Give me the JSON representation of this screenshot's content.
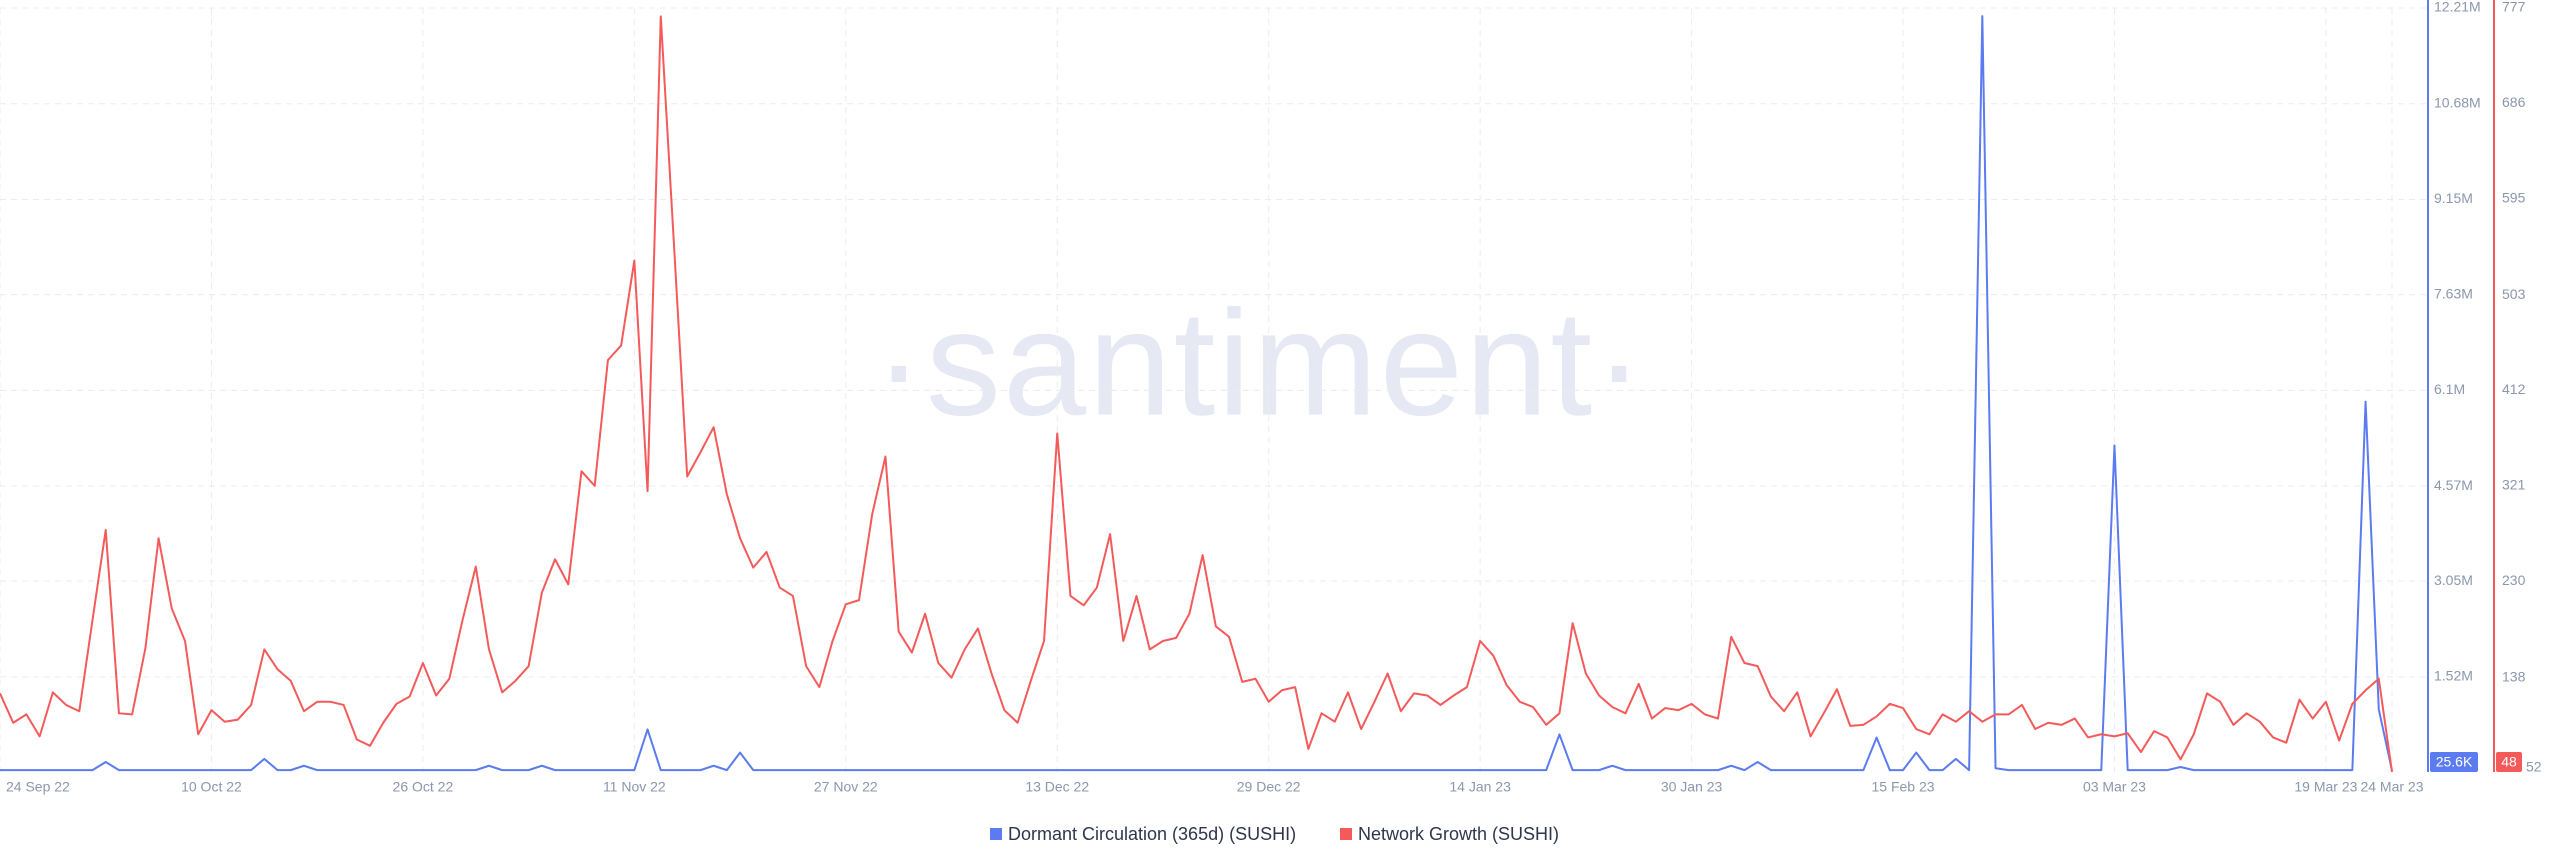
{
  "chart_data": {
    "type": "line",
    "watermark": "·santiment·",
    "categories": [
      "24 Sep 22",
      null,
      null,
      null,
      null,
      null,
      null,
      null,
      null,
      null,
      null,
      null,
      null,
      null,
      null,
      null,
      "10 Oct 22",
      null,
      null,
      null,
      null,
      null,
      null,
      null,
      null,
      null,
      null,
      null,
      null,
      null,
      null,
      null,
      "26 Oct 22",
      null,
      null,
      null,
      null,
      null,
      null,
      null,
      null,
      null,
      null,
      null,
      null,
      null,
      null,
      null,
      "11 Nov 22",
      null,
      null,
      null,
      null,
      null,
      null,
      null,
      null,
      null,
      null,
      null,
      null,
      null,
      null,
      null,
      "27 Nov 22",
      null,
      null,
      null,
      null,
      null,
      null,
      null,
      null,
      null,
      null,
      null,
      null,
      null,
      null,
      null,
      "13 Dec 22",
      null,
      null,
      null,
      null,
      null,
      null,
      null,
      null,
      null,
      null,
      null,
      null,
      null,
      null,
      null,
      "29 Dec 22",
      null,
      null,
      null,
      null,
      null,
      null,
      null,
      null,
      null,
      null,
      null,
      null,
      null,
      null,
      null,
      "14 Jan 23",
      null,
      null,
      null,
      null,
      null,
      null,
      null,
      null,
      null,
      null,
      null,
      null,
      null,
      null,
      null,
      "30 Jan 23",
      null,
      null,
      null,
      null,
      null,
      null,
      null,
      null,
      null,
      null,
      null,
      null,
      null,
      null,
      null,
      "15 Feb 23",
      null,
      null,
      null,
      null,
      null,
      null,
      null,
      null,
      null,
      null,
      null,
      null,
      null,
      null,
      null,
      "03 Mar 23",
      null,
      null,
      null,
      null,
      null,
      null,
      null,
      null,
      null,
      null,
      null,
      null,
      null,
      null,
      null,
      "19 Mar 23",
      null,
      null,
      null,
      null,
      "24 Mar 23"
    ],
    "series": [
      {
        "name": "Dormant Circulation (365d) (SUSHI)",
        "color": "#5b7bf0",
        "axis": "y",
        "current_label": "25.6K",
        "values": [
          30000,
          30000,
          30000,
          30000,
          30000,
          30000,
          30000,
          30000,
          160000,
          30000,
          30000,
          30000,
          30000,
          30000,
          30000,
          30000,
          30000,
          30000,
          30000,
          30000,
          210000,
          30000,
          30000,
          100000,
          30000,
          30000,
          30000,
          30000,
          30000,
          30000,
          30000,
          30000,
          30000,
          30000,
          30000,
          30000,
          30000,
          100000,
          30000,
          30000,
          30000,
          100000,
          30000,
          30000,
          30000,
          30000,
          30000,
          30000,
          30000,
          680000,
          30000,
          30000,
          30000,
          30000,
          100000,
          30000,
          310000,
          30000,
          30000,
          30000,
          30000,
          30000,
          30000,
          30000,
          30000,
          30000,
          30000,
          30000,
          30000,
          30000,
          30000,
          30000,
          30000,
          30000,
          30000,
          30000,
          30000,
          30000,
          30000,
          30000,
          30000,
          30000,
          30000,
          30000,
          30000,
          30000,
          30000,
          30000,
          30000,
          30000,
          30000,
          30000,
          30000,
          30000,
          30000,
          30000,
          30000,
          30000,
          30000,
          30000,
          30000,
          30000,
          30000,
          30000,
          30000,
          30000,
          30000,
          30000,
          30000,
          30000,
          30000,
          30000,
          30000,
          30000,
          30000,
          30000,
          30000,
          30000,
          600000,
          30000,
          30000,
          30000,
          100000,
          30000,
          30000,
          30000,
          30000,
          30000,
          30000,
          30000,
          30000,
          100000,
          30000,
          160000,
          30000,
          30000,
          30000,
          30000,
          30000,
          30000,
          30000,
          30000,
          550000,
          30000,
          30000,
          310000,
          30000,
          30000,
          210000,
          30000,
          12080000,
          60000,
          30000,
          30000,
          30000,
          30000,
          30000,
          30000,
          30000,
          30000,
          5220000,
          30000,
          30000,
          30000,
          30000,
          80000,
          30000,
          30000,
          30000,
          30000,
          30000,
          30000,
          30000,
          30000,
          30000,
          30000,
          30000,
          30000,
          30000,
          5920000,
          1000000,
          25600
        ]
      },
      {
        "name": "Network Growth (SUSHI)",
        "color": "#f55a5a",
        "axis": "y2",
        "current_label": "48",
        "values": [
          123,
          95,
          103,
          82,
          124,
          112,
          106,
          193,
          279,
          104,
          103,
          166,
          271,
          204,
          173,
          84,
          107,
          96,
          98,
          112,
          165,
          146,
          135,
          106,
          115,
          115,
          112,
          79,
          73,
          95,
          113,
          120,
          152,
          121,
          137,
          193,
          244,
          165,
          124,
          135,
          149,
          219,
          251,
          227,
          335,
          321,
          441,
          455,
          536,
          316,
          769,
          551,
          330,
          353,
          377,
          313,
          271,
          243,
          258,
          224,
          216,
          149,
          129,
          173,
          208,
          212,
          294,
          349,
          182,
          162,
          199,
          152,
          138,
          165,
          185,
          143,
          107,
          95,
          135,
          173,
          371,
          216,
          207,
          224,
          275,
          173,
          216,
          165,
          173,
          176,
          199,
          255,
          187,
          177,
          134,
          137,
          115,
          126,
          129,
          70,
          104,
          96,
          124,
          89,
          115,
          142,
          106,
          123,
          121,
          112,
          121,
          129,
          173,
          159,
          131,
          115,
          110,
          93,
          104,
          190,
          142,
          121,
          110,
          104,
          132,
          99,
          109,
          107,
          113,
          103,
          99,
          177,
          152,
          149,
          120,
          106,
          124,
          82,
          104,
          127,
          92,
          93,
          101,
          113,
          109,
          89,
          84,
          103,
          96,
          106,
          96,
          103,
          103,
          112,
          89,
          95,
          93,
          99,
          81,
          84,
          82,
          85,
          67,
          87,
          81,
          60,
          84,
          123,
          115,
          93,
          104,
          96,
          81,
          76,
          117,
          99,
          115,
          78,
          113,
          126,
          137,
          48
        ]
      }
    ],
    "ylim": [
      0,
      12210000
    ],
    "yticks": [
      {
        "value": 1520000,
        "label": "1.52M"
      },
      {
        "value": 3050000,
        "label": "3.05M"
      },
      {
        "value": 4570000,
        "label": "4.57M"
      },
      {
        "value": 6100000,
        "label": "6.1M"
      },
      {
        "value": 7630000,
        "label": "7.63M"
      },
      {
        "value": 9150000,
        "label": "9.15M"
      },
      {
        "value": 10680000,
        "label": "10.68M"
      },
      {
        "value": 12210000,
        "label": "12.21M"
      }
    ],
    "y2lim": [
      48,
      777
    ],
    "y2ticks": [
      52,
      138,
      230,
      321,
      412,
      503,
      595,
      686,
      777
    ],
    "grid": true
  }
}
